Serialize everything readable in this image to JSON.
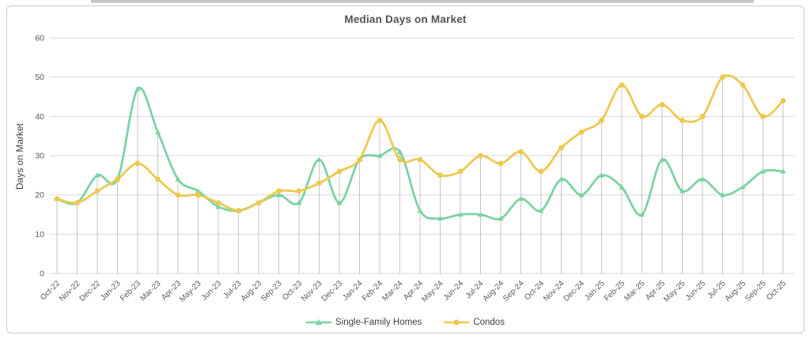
{
  "chart_data": {
    "type": "line",
    "title": "Median Days on Market",
    "xlabel": "",
    "ylabel": "Days on Market",
    "ylim": [
      0,
      60
    ],
    "yticks": [
      0,
      10,
      20,
      30,
      40,
      50,
      60
    ],
    "grid": "horizontal gridlines plus gray vertical drop lines at every category",
    "legend_position": "bottom-center",
    "line_style": "smoothed",
    "categories": [
      "Oct-22",
      "Nov-22",
      "Dec-22",
      "Jan-23",
      "Feb-23",
      "Mar-23",
      "Apr-23",
      "May-23",
      "Jun-23",
      "Jul-23",
      "Aug-23",
      "Sep-23",
      "Oct-23",
      "Nov-23",
      "Dec-23",
      "Jan-24",
      "Feb-24",
      "Mar-24",
      "Apr-24",
      "May-24",
      "Jun-24",
      "Jul-24",
      "Aug-24",
      "Sep-24",
      "Oct-24",
      "Nov-24",
      "Dec-24",
      "Jan-25",
      "Feb-25",
      "Mar-25",
      "Apr-25",
      "May-25",
      "Jun-25",
      "Jul-25",
      "Aug-25",
      "Sep-25",
      "Oct-25"
    ],
    "series": [
      {
        "name": "Single-Family Homes",
        "color": "#7bd3a4",
        "marker": "triangle",
        "values": [
          19,
          18,
          25,
          24,
          47,
          36,
          24,
          21,
          17,
          16,
          18,
          20,
          18,
          29,
          18,
          29,
          30,
          31,
          16,
          14,
          15,
          15,
          14,
          19,
          16,
          24,
          20,
          25,
          22,
          15,
          29,
          21,
          24,
          20,
          22,
          26,
          26
        ]
      },
      {
        "name": "Condos",
        "color": "#ecc94f",
        "marker": "circle",
        "values": [
          19,
          18,
          21,
          24,
          28,
          24,
          20,
          20,
          18,
          16,
          18,
          21,
          21,
          23,
          26,
          29,
          39,
          29,
          29,
          25,
          26,
          30,
          28,
          31,
          26,
          32,
          36,
          39,
          48,
          40,
          43,
          39,
          40,
          50,
          48,
          40,
          44
        ]
      }
    ],
    "colors": {
      "gridline": "#d9d9d9",
      "drop_line": "#ababab",
      "tick_label": "#595959",
      "title_text": "#525252"
    }
  }
}
